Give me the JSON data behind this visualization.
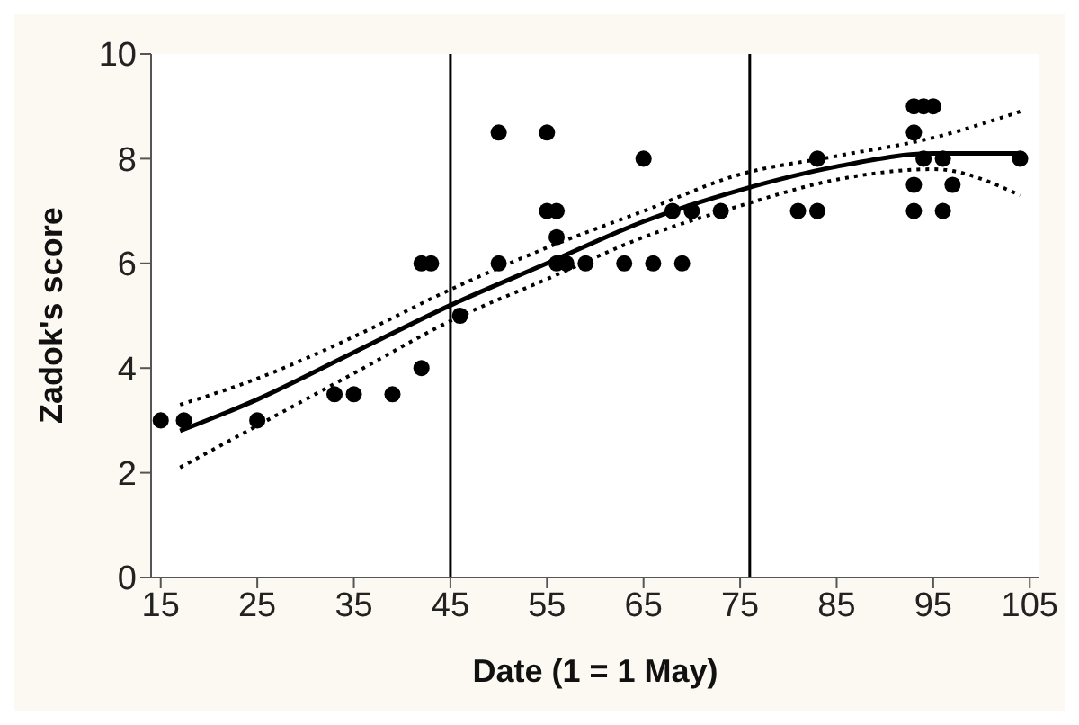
{
  "chart_data": {
    "type": "scatter",
    "xlabel": "Date (1 = 1 May)",
    "ylabel": "Zadok's score",
    "xlim": [
      14,
      106
    ],
    "xticks": [
      15,
      25,
      35,
      45,
      55,
      65,
      75,
      85,
      95,
      105
    ],
    "ylim": [
      0,
      10
    ],
    "yticks": [
      0,
      2,
      4,
      6,
      8,
      10
    ],
    "series": [
      {
        "type": "line",
        "color": "#000000",
        "line_style": "dotted",
        "marker": "none",
        "x": [
          17,
          25,
          35,
          45,
          55,
          65,
          75,
          85,
          95,
          104
        ],
        "values": [
          3.3,
          3.8,
          4.6,
          5.5,
          6.3,
          7.0,
          7.7,
          8.05,
          8.4,
          8.9
        ]
      },
      {
        "type": "line",
        "color": "#000000",
        "line_style": "dotted",
        "marker": "none",
        "x": [
          17,
          25,
          35,
          45,
          55,
          65,
          75,
          85,
          95,
          104
        ],
        "values": [
          2.1,
          2.9,
          3.9,
          4.9,
          5.7,
          6.5,
          7.1,
          7.6,
          7.8,
          7.3
        ]
      },
      {
        "type": "line",
        "color": "#000000",
        "line_style": "solid",
        "marker": "none",
        "x": [
          17,
          25,
          35,
          45,
          55,
          65,
          75,
          85,
          95,
          104
        ],
        "values": [
          2.8,
          3.4,
          4.3,
          5.2,
          6.0,
          6.8,
          7.4,
          7.85,
          8.1,
          8.1
        ]
      },
      {
        "color": "#000000",
        "marker": "circle",
        "x": [
          15,
          17.4,
          25,
          33,
          35,
          39,
          42,
          42,
          43,
          46,
          50,
          50,
          55,
          55,
          56,
          56,
          56,
          57,
          59,
          63,
          65,
          66,
          69,
          68,
          70,
          73,
          81,
          83,
          83,
          93,
          96,
          93,
          94,
          95,
          93,
          94,
          96,
          93,
          97,
          104
        ],
        "values": [
          3,
          3,
          3,
          3.5,
          3.5,
          3.5,
          4,
          6,
          6,
          5,
          8.5,
          6,
          8.5,
          7,
          7,
          6.5,
          6,
          6,
          6,
          6,
          8,
          6,
          6,
          7,
          7,
          7,
          7,
          7,
          8,
          7,
          7,
          9,
          9,
          9,
          8.5,
          8,
          8,
          7.5,
          7.5,
          8
        ]
      }
    ],
    "ref_lines": [
      {
        "axis": "x",
        "value": 45,
        "color": "#000000",
        "line_style": "solid"
      },
      {
        "axis": "x",
        "value": 76,
        "color": "#000000",
        "line_style": "solid"
      }
    ]
  }
}
